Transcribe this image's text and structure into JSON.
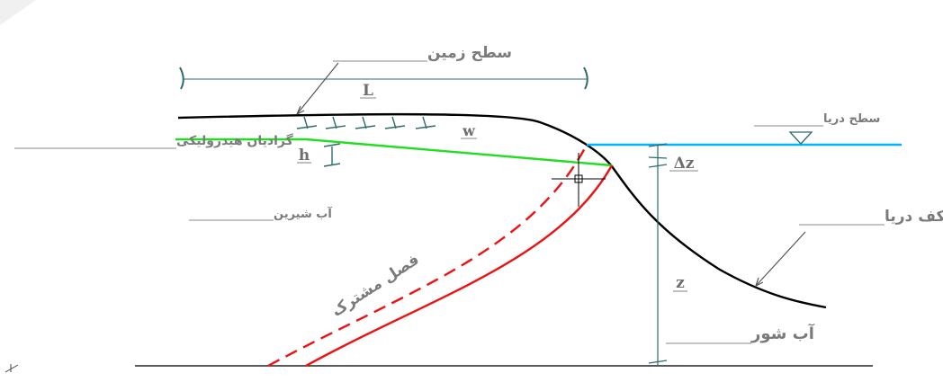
{
  "labels": {
    "ground_surface": "سطح زمین",
    "L": "L",
    "hydraulic_gradient": "گرادیان هیدرولیکی",
    "w": "w",
    "h": "h",
    "sea_level": "سطح دریا",
    "delta_z": "Δz",
    "fresh_water": "آب شیرین",
    "seabed": "کف دریا",
    "interface": "فصل مشترک",
    "z": "z",
    "salt_water": "آب شور"
  },
  "colors": {
    "ground": "#000000",
    "gradient_line": "#22dd22",
    "sea_surface": "#00b4ff",
    "interface": "#ee1111",
    "dimension": "#2e6b6b",
    "label_text": "#7b7b7b"
  },
  "icons": {
    "water_level_marker": "triangle-down-icon",
    "cursor": "crosshair-icon",
    "ucs": "ucs-axis-icon"
  }
}
